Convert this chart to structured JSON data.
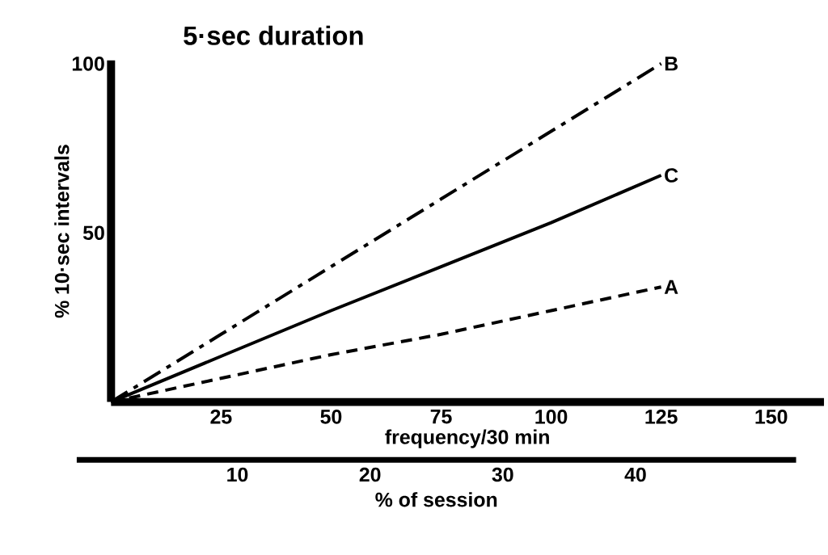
{
  "chart_data": {
    "type": "line",
    "title": "5·sec duration",
    "xlabel": "frequency/30 min",
    "ylabel": "% 10·sec intervals",
    "x2label": "% of session",
    "x": [
      0,
      25,
      50,
      75,
      100,
      125
    ],
    "series": [
      {
        "name": "B",
        "color": "#000000",
        "line_style": "dashdot",
        "values": [
          0,
          20,
          40,
          60,
          80,
          100
        ]
      },
      {
        "name": "C",
        "color": "#000000",
        "line_style": "solid",
        "values": [
          0,
          13.5,
          27,
          40,
          53,
          67
        ]
      },
      {
        "name": "A",
        "color": "#000000",
        "line_style": "dashed",
        "values": [
          0,
          7,
          14,
          20,
          27,
          34
        ]
      }
    ],
    "xlim": [
      0,
      162
    ],
    "ylim": [
      0,
      101
    ],
    "xticks": [
      25,
      50,
      75,
      100,
      125,
      150
    ],
    "yticks": [
      50,
      100
    ],
    "x2lim": [
      -2.1,
      52.1
    ],
    "x2ticks": [
      10,
      20,
      30,
      40
    ]
  }
}
